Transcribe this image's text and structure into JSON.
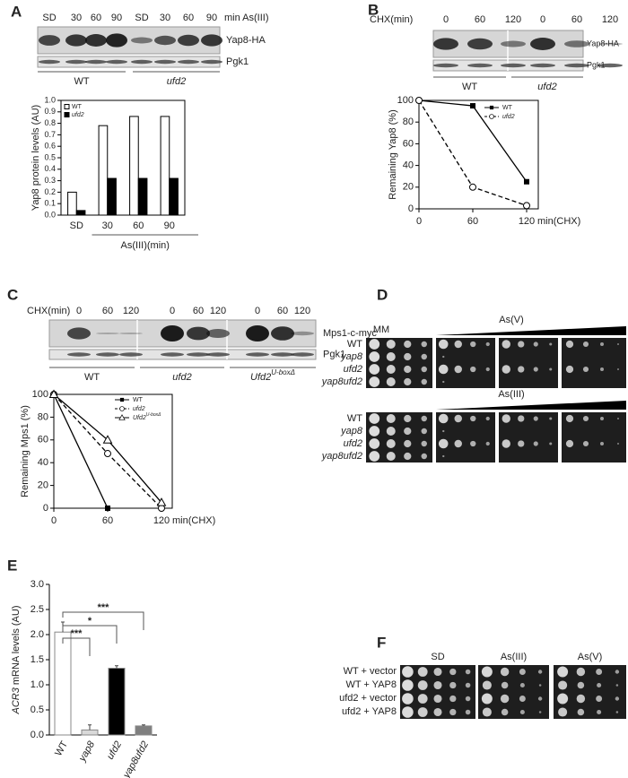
{
  "panel_labels": [
    "A",
    "B",
    "C",
    "D",
    "E",
    "F"
  ],
  "blot_A": {
    "header": [
      "SD",
      "30",
      "60",
      "90",
      "SD",
      "30",
      "60",
      "90"
    ],
    "unit": "min As(III)",
    "rows": [
      "Yap8-HA",
      "Pgk1"
    ],
    "groups": [
      "WT",
      "ufd2"
    ]
  },
  "blot_B": {
    "header_label": "CHX(min)",
    "header": [
      "0",
      "60",
      "120",
      "0",
      "60",
      "120"
    ],
    "rows": [
      "Yap8-HA",
      "Pgk1"
    ],
    "groups": [
      "WT",
      "ufd2"
    ]
  },
  "blot_C": {
    "header_label": "CHX(min)",
    "header": [
      "0",
      "60",
      "120",
      "0",
      "60",
      "120",
      "0",
      "60",
      "120"
    ],
    "rows": [
      "Mps1-c-myc",
      "Pgk1"
    ],
    "groups": [
      "WT",
      "ufd2",
      "Ufd2"
    ],
    "group_sup": "U-boxΔ"
  },
  "spot_D": {
    "conditions": [
      "MM",
      "As(V)",
      "As(III)"
    ],
    "strains": [
      "WT",
      "yap8",
      "ufd2",
      "yap8ufd2"
    ]
  },
  "spot_F": {
    "columns": [
      "SD",
      "As(III)",
      "As(V)"
    ],
    "rows": [
      "WT + vector",
      "WT + YAP8",
      "ufd2 + vector",
      "ufd2 + YAP8"
    ]
  },
  "chart_data": [
    {
      "type": "bar",
      "ylabel": "Yap8 protein levels (AU)",
      "categories": [
        "SD",
        "30",
        "60",
        "90"
      ],
      "group_label": "As(III)(min)",
      "series": [
        {
          "name": "WT",
          "color": "#ffffff",
          "values": [
            0.2,
            0.78,
            0.86,
            0.86
          ]
        },
        {
          "name": "ufd2",
          "color": "#000000",
          "values": [
            0.04,
            0.32,
            0.32,
            0.32
          ]
        }
      ],
      "ylim": [
        0,
        1
      ],
      "yticks": [
        {
          "value": 0,
          "label": "0.0"
        },
        0.1,
        0.2,
        0.3,
        0.4,
        0.5,
        0.6,
        0.7,
        0.8,
        0.9,
        {
          "value": 1,
          "label": "1.0"
        }
      ],
      "legend": "upper left"
    },
    {
      "type": "line",
      "ylabel": "Remaining Yap8 (%)",
      "xlabel": "min(CHX)",
      "x": [
        0,
        60,
        120
      ],
      "series": [
        {
          "name": "WT",
          "color": "#000000",
          "marker": "square",
          "dash": "solid",
          "values": [
            100,
            95,
            25
          ]
        },
        {
          "name": "ufd2",
          "color": "#000000",
          "marker": "circle",
          "dash": "dashed",
          "values": [
            100,
            20,
            3
          ]
        }
      ],
      "xlim": [
        0,
        120
      ],
      "xticks": [
        0,
        60,
        120
      ],
      "ylim": [
        0,
        100
      ],
      "yticks": [
        0,
        20,
        40,
        60,
        80,
        100
      ],
      "legend": "upper right"
    },
    {
      "type": "line",
      "ylabel": "Remaining Mps1 (%)",
      "xlabel": "min(CHX)",
      "x": [
        0,
        60,
        120
      ],
      "series": [
        {
          "name": "WT",
          "color": "#000000",
          "marker": "square",
          "dash": "solid",
          "values": [
            100,
            0,
            null
          ]
        },
        {
          "name": "ufd2",
          "color": "#000000",
          "marker": "circle",
          "dash": "dashed",
          "values": [
            100,
            48,
            0
          ]
        },
        {
          "name": "Ufd2",
          "name_sup": "U-boxΔ",
          "color": "#000000",
          "marker": "triangle",
          "dash": "solid",
          "values": [
            100,
            60,
            5
          ]
        }
      ],
      "xlim": [
        0,
        120
      ],
      "xticks": [
        0,
        60,
        120
      ],
      "ylim": [
        0,
        100
      ],
      "yticks": [
        0,
        20,
        40,
        60,
        80,
        100
      ],
      "legend": "upper right"
    },
    {
      "type": "errorbar",
      "ylabel_italic": "ACR3",
      "ylabel": "mRNA levels (AU)",
      "categories": [
        "WT",
        "yap8",
        "ufd2",
        "yap8ufd2"
      ],
      "values": [
        2.05,
        0.1,
        1.33,
        0.18
      ],
      "errors": [
        0.2,
        0.1,
        0.05,
        0.02
      ],
      "colors": [
        "#ffffff",
        "#d9d9d9",
        "#000000",
        "#7f7f7f"
      ],
      "ylim": [
        0,
        3
      ],
      "yticks": [
        {
          "value": 0,
          "label": "0.0"
        },
        0.5,
        {
          "value": 1,
          "label": "1.0"
        },
        1.5,
        {
          "value": 2,
          "label": "2.0"
        },
        2.5,
        {
          "value": 3,
          "label": "3.0"
        }
      ],
      "significance": [
        "***",
        "*",
        "***"
      ]
    }
  ]
}
